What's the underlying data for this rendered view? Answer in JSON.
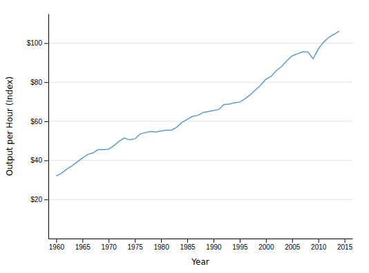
{
  "chart_data": {
    "type": "line",
    "xlabel": "Year",
    "ylabel": "Output per Hour (Index)",
    "x": [
      1960,
      1961,
      1962,
      1963,
      1964,
      1965,
      1966,
      1967,
      1968,
      1969,
      1970,
      1971,
      1972,
      1973,
      1974,
      1975,
      1976,
      1977,
      1978,
      1979,
      1980,
      1981,
      1982,
      1983,
      1984,
      1985,
      1986,
      1987,
      1988,
      1989,
      1990,
      1991,
      1992,
      1993,
      1994,
      1995,
      1996,
      1997,
      1998,
      1999,
      2000,
      2001,
      2002,
      2003,
      2004,
      2005,
      2006,
      2007,
      2008,
      2009,
      2010,
      2011,
      2012,
      2013,
      2014
    ],
    "values": [
      32.0,
      33.5,
      35.5,
      37.2,
      39.2,
      41.2,
      43.0,
      43.8,
      45.5,
      45.5,
      45.8,
      47.5,
      49.8,
      51.5,
      50.5,
      51.0,
      53.5,
      54.2,
      54.8,
      54.5,
      55.0,
      55.5,
      55.5,
      57.0,
      59.5,
      61.0,
      62.5,
      63.0,
      64.5,
      65.0,
      65.5,
      66.0,
      68.5,
      68.8,
      69.5,
      69.8,
      71.5,
      73.5,
      76.0,
      78.5,
      81.5,
      83.0,
      86.0,
      88.0,
      91.0,
      93.5,
      94.5,
      95.5,
      95.5,
      92.0,
      97.0,
      100.5,
      103.0,
      104.5,
      106.148
    ],
    "color": "#5b9bd5",
    "xlim": [
      1958.5,
      2016.5
    ],
    "ylim": [
      0,
      115
    ],
    "xticks": [
      1960,
      1965,
      1970,
      1975,
      1980,
      1985,
      1990,
      1995,
      2000,
      2005,
      2010,
      2015
    ],
    "yticks": [
      {
        "value": 20,
        "label": "$20"
      },
      {
        "value": 40,
        "label": "$40"
      },
      {
        "value": 60,
        "label": "$60"
      },
      {
        "value": 80,
        "label": "$80"
      },
      {
        "value": 100,
        "label": "$100"
      }
    ],
    "grid": true
  }
}
